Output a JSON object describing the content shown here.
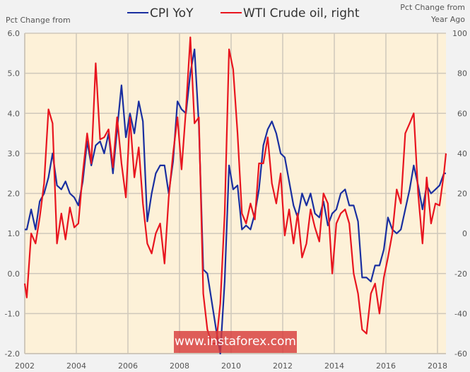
{
  "chart_data": {
    "type": "line",
    "title": "",
    "left_axis_title": "Pct Change from",
    "right_axis_title_line1": "Pct Change from",
    "right_axis_title_line2": "Year Ago",
    "xlabel": "",
    "xlim": [
      2002,
      2018.33
    ],
    "ylim_left": [
      -2.0,
      6.0
    ],
    "ylim_right": [
      -60,
      100
    ],
    "x_ticks": [
      "2002",
      "2004",
      "2006",
      "2008",
      "2010",
      "2012",
      "2014",
      "2016",
      "2018"
    ],
    "y_ticks_left": [
      "6.0",
      "5.0",
      "4.0",
      "3.0",
      "2.0",
      "1.0",
      "0.0",
      "-1.0",
      "-2.0"
    ],
    "y_ticks_right": [
      "100",
      "80",
      "60",
      "40",
      "20",
      "0",
      "-20",
      "-40",
      "-60"
    ],
    "grid": true,
    "legend_position": "top-center",
    "plot_background": "#fdf1d8",
    "series": [
      {
        "name": "CPI YoY",
        "axis": "left",
        "color": "#1a2fa0",
        "x": [
          2002.0,
          2002.08,
          2002.25,
          2002.42,
          2002.58,
          2002.75,
          2002.92,
          2003.08,
          2003.25,
          2003.42,
          2003.58,
          2003.75,
          2003.92,
          2004.08,
          2004.25,
          2004.42,
          2004.58,
          2004.75,
          2004.92,
          2005.08,
          2005.25,
          2005.42,
          2005.58,
          2005.75,
          2005.92,
          2006.08,
          2006.25,
          2006.42,
          2006.58,
          2006.75,
          2006.92,
          2007.08,
          2007.25,
          2007.42,
          2007.58,
          2007.75,
          2007.92,
          2008.08,
          2008.25,
          2008.42,
          2008.58,
          2008.75,
          2008.92,
          2009.08,
          2009.25,
          2009.42,
          2009.58,
          2009.75,
          2009.92,
          2010.08,
          2010.25,
          2010.42,
          2010.58,
          2010.75,
          2010.92,
          2011.08,
          2011.25,
          2011.42,
          2011.58,
          2011.75,
          2011.92,
          2012.08,
          2012.25,
          2012.42,
          2012.58,
          2012.75,
          2012.92,
          2013.08,
          2013.25,
          2013.42,
          2013.58,
          2013.75,
          2013.92,
          2014.08,
          2014.25,
          2014.42,
          2014.58,
          2014.75,
          2014.92,
          2015.08,
          2015.25,
          2015.42,
          2015.58,
          2015.75,
          2015.92,
          2016.08,
          2016.25,
          2016.42,
          2016.58,
          2016.75,
          2016.92,
          2017.08,
          2017.25,
          2017.42,
          2017.58,
          2017.75,
          2017.92,
          2018.08,
          2018.25,
          2018.33
        ],
        "values": [
          1.1,
          1.1,
          1.6,
          1.1,
          1.8,
          2.0,
          2.4,
          3.0,
          2.2,
          2.1,
          2.3,
          2.0,
          1.9,
          1.7,
          2.3,
          3.3,
          2.7,
          3.2,
          3.3,
          3.0,
          3.5,
          2.5,
          3.6,
          4.7,
          3.4,
          4.0,
          3.5,
          4.3,
          3.8,
          1.3,
          2.0,
          2.5,
          2.7,
          2.7,
          2.0,
          2.8,
          4.3,
          4.1,
          4.0,
          5.0,
          5.6,
          3.7,
          0.1,
          0.0,
          -0.7,
          -1.4,
          -2.0,
          -0.2,
          2.7,
          2.1,
          2.2,
          1.1,
          1.2,
          1.1,
          1.5,
          2.1,
          3.2,
          3.6,
          3.8,
          3.5,
          3.0,
          2.9,
          2.3,
          1.7,
          1.4,
          2.0,
          1.7,
          2.0,
          1.5,
          1.4,
          1.8,
          1.2,
          1.5,
          1.6,
          2.0,
          2.1,
          1.7,
          1.7,
          1.3,
          -0.1,
          -0.1,
          -0.2,
          0.2,
          0.2,
          0.6,
          1.4,
          1.1,
          1.0,
          1.1,
          1.6,
          2.1,
          2.7,
          2.2,
          1.6,
          2.2,
          2.0,
          2.1,
          2.2,
          2.5,
          2.5
        ]
      },
      {
        "name": "WTI Crude oil, right",
        "axis": "right",
        "color": "#e8151f",
        "x": [
          2002.0,
          2002.08,
          2002.25,
          2002.42,
          2002.58,
          2002.75,
          2002.92,
          2003.08,
          2003.25,
          2003.42,
          2003.58,
          2003.75,
          2003.92,
          2004.08,
          2004.25,
          2004.42,
          2004.58,
          2004.75,
          2004.92,
          2005.08,
          2005.25,
          2005.42,
          2005.58,
          2005.75,
          2005.92,
          2006.08,
          2006.25,
          2006.42,
          2006.58,
          2006.75,
          2006.92,
          2007.08,
          2007.25,
          2007.42,
          2007.58,
          2007.75,
          2007.92,
          2008.08,
          2008.25,
          2008.42,
          2008.58,
          2008.75,
          2008.92,
          2009.08,
          2009.25,
          2009.42,
          2009.58,
          2009.75,
          2009.92,
          2010.08,
          2010.25,
          2010.42,
          2010.58,
          2010.75,
          2010.92,
          2011.08,
          2011.25,
          2011.42,
          2011.58,
          2011.75,
          2011.92,
          2012.08,
          2012.25,
          2012.42,
          2012.58,
          2012.75,
          2012.92,
          2013.08,
          2013.25,
          2013.42,
          2013.58,
          2013.75,
          2013.92,
          2014.08,
          2014.25,
          2014.42,
          2014.58,
          2014.75,
          2014.92,
          2015.08,
          2015.25,
          2015.42,
          2015.58,
          2015.75,
          2015.92,
          2016.08,
          2016.25,
          2016.42,
          2016.58,
          2016.75,
          2016.92,
          2017.08,
          2017.25,
          2017.42,
          2017.58,
          2017.75,
          2017.92,
          2018.08,
          2018.25,
          2018.33
        ],
        "values": [
          -25,
          -32,
          0,
          -5,
          8,
          25,
          62,
          55,
          -5,
          10,
          -3,
          13,
          3,
          5,
          30,
          50,
          35,
          85,
          47,
          48,
          52,
          33,
          58,
          35,
          18,
          58,
          28,
          43,
          15,
          -5,
          -10,
          0,
          5,
          -15,
          18,
          40,
          58,
          32,
          62,
          98,
          55,
          58,
          -30,
          -48,
          -55,
          -55,
          -35,
          10,
          92,
          82,
          50,
          10,
          5,
          15,
          7,
          35,
          35,
          48,
          25,
          15,
          30,
          -1,
          12,
          -5,
          10,
          -12,
          -5,
          12,
          3,
          -4,
          20,
          15,
          -20,
          5,
          10,
          12,
          5,
          -20,
          -30,
          -48,
          -50,
          -30,
          -25,
          -40,
          -22,
          -12,
          0,
          22,
          15,
          50,
          55,
          60,
          20,
          -5,
          28,
          5,
          15,
          14,
          30,
          40
        ]
      }
    ]
  },
  "legend": {
    "items": [
      {
        "label": "CPI YoY",
        "color": "#1a2fa0"
      },
      {
        "label": "WTI Crude oil, right",
        "color": "#e8151f"
      }
    ]
  },
  "watermark": {
    "text": "www.instaforex.com"
  }
}
